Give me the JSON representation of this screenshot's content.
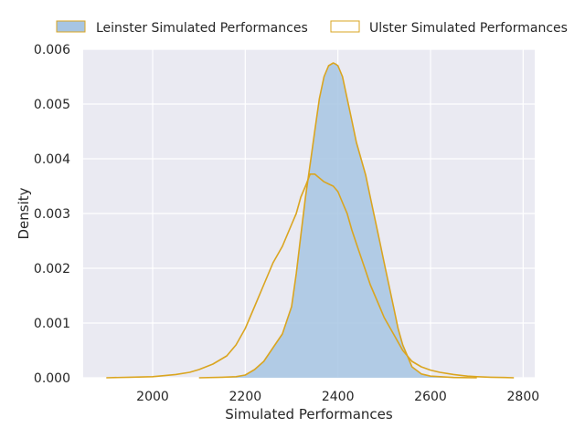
{
  "chart_data": {
    "type": "area",
    "title": "",
    "xlabel": "Simulated Performances",
    "ylabel": "Density",
    "xlim": [
      1850,
      2825
    ],
    "ylim": [
      0,
      0.006
    ],
    "xticks": [
      2000,
      2200,
      2400,
      2600,
      2800
    ],
    "xtick_labels": [
      "2000",
      "2200",
      "2400",
      "2600",
      "2800"
    ],
    "yticks": [
      0,
      0.001,
      0.002,
      0.003,
      0.004,
      0.005,
      0.006
    ],
    "ytick_labels": [
      "0.000",
      "0.001",
      "0.002",
      "0.003",
      "0.004",
      "0.005",
      "0.006"
    ],
    "grid": true,
    "legend_position": "top-center",
    "colors": {
      "background": "#eaeaf2",
      "grid": "#ffffff",
      "line": "#daa520",
      "leinster_fill": "#a7c5e3",
      "ulster_fill": "#ffffff"
    },
    "series": [
      {
        "name": "Leinster Simulated Performances",
        "filled": true,
        "x": [
          2100,
          2150,
          2180,
          2200,
          2220,
          2240,
          2260,
          2280,
          2300,
          2310,
          2320,
          2330,
          2340,
          2350,
          2360,
          2370,
          2380,
          2390,
          2395,
          2400,
          2410,
          2420,
          2430,
          2440,
          2450,
          2460,
          2470,
          2480,
          2490,
          2500,
          2510,
          2520,
          2530,
          2540,
          2550,
          2560,
          2580,
          2600,
          2650,
          2700
        ],
        "y": [
          0.0,
          1e-05,
          2e-05,
          5e-05,
          0.00015,
          0.0003,
          0.00055,
          0.0008,
          0.0013,
          0.0019,
          0.0026,
          0.0033,
          0.0039,
          0.0045,
          0.0051,
          0.0055,
          0.0057,
          0.00575,
          0.00573,
          0.0057,
          0.0055,
          0.0051,
          0.0047,
          0.0043,
          0.004,
          0.0037,
          0.0033,
          0.0029,
          0.0025,
          0.0021,
          0.0017,
          0.0013,
          0.0009,
          0.0006,
          0.0004,
          0.0002,
          7e-05,
          3e-05,
          5e-06,
          0.0
        ]
      },
      {
        "name": "Ulster Simulated Performances",
        "filled": false,
        "x": [
          1900,
          1950,
          2000,
          2050,
          2080,
          2100,
          2130,
          2160,
          2180,
          2200,
          2220,
          2240,
          2260,
          2280,
          2300,
          2310,
          2320,
          2330,
          2340,
          2350,
          2360,
          2370,
          2380,
          2390,
          2400,
          2410,
          2420,
          2430,
          2440,
          2450,
          2460,
          2470,
          2480,
          2490,
          2500,
          2520,
          2540,
          2560,
          2580,
          2600,
          2620,
          2650,
          2680,
          2700,
          2730,
          2760,
          2780
        ],
        "y": [
          0.0,
          1e-05,
          2e-05,
          6e-05,
          0.0001,
          0.00015,
          0.00025,
          0.0004,
          0.0006,
          0.0009,
          0.0013,
          0.0017,
          0.0021,
          0.0024,
          0.0028,
          0.003,
          0.0033,
          0.0035,
          0.00372,
          0.00372,
          0.00365,
          0.00358,
          0.00354,
          0.0035,
          0.0034,
          0.0032,
          0.003,
          0.0027,
          0.00245,
          0.0022,
          0.00195,
          0.0017,
          0.0015,
          0.0013,
          0.0011,
          0.0008,
          0.0005,
          0.0003,
          0.0002,
          0.00014,
          0.0001,
          6e-05,
          3e-05,
          2e-05,
          1e-05,
          5e-06,
          0.0
        ]
      }
    ]
  }
}
